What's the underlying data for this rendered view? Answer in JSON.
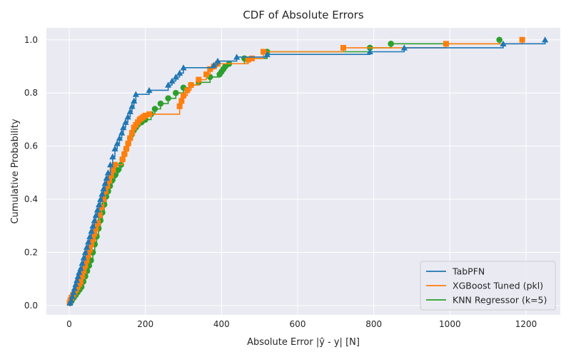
{
  "chart_data": {
    "type": "line",
    "title": "CDF of Absolute Errors",
    "xlabel": "Absolute Error |ŷ - y| [N]",
    "ylabel": "Cumulative Probability",
    "xlim": [
      -60,
      1290
    ],
    "ylim": [
      -0.035,
      1.045
    ],
    "xticks": [
      0,
      200,
      400,
      600,
      800,
      1000,
      1200
    ],
    "yticks": [
      0.0,
      0.2,
      0.4,
      0.6,
      0.8,
      1.0
    ],
    "grid": true,
    "legend_position": "lower-right",
    "series": [
      {
        "name": "TabPFN",
        "color": "#1f77b4",
        "marker": "triangle",
        "x": [
          2,
          5,
          8,
          11,
          14,
          17,
          20,
          23,
          26,
          30,
          34,
          38,
          42,
          46,
          50,
          54,
          58,
          62,
          66,
          70,
          74,
          78,
          82,
          86,
          90,
          94,
          98,
          102,
          108,
          114,
          120,
          126,
          132,
          138,
          142,
          148,
          154,
          160,
          165,
          170,
          175,
          210,
          260,
          270,
          280,
          290,
          300,
          380,
          390,
          440,
          520,
          790,
          880,
          1140,
          1250
        ],
        "y": [
          0.01,
          0.02,
          0.035,
          0.05,
          0.065,
          0.08,
          0.095,
          0.11,
          0.125,
          0.14,
          0.16,
          0.18,
          0.2,
          0.22,
          0.24,
          0.26,
          0.28,
          0.3,
          0.32,
          0.34,
          0.36,
          0.38,
          0.4,
          0.42,
          0.44,
          0.46,
          0.48,
          0.5,
          0.53,
          0.56,
          0.59,
          0.61,
          0.63,
          0.65,
          0.67,
          0.69,
          0.71,
          0.73,
          0.75,
          0.77,
          0.795,
          0.81,
          0.83,
          0.845,
          0.86,
          0.875,
          0.895,
          0.905,
          0.92,
          0.935,
          0.945,
          0.955,
          0.97,
          0.985,
          1.0
        ]
      },
      {
        "name": "XGBoost Tuned (pkl)",
        "color": "#ff7f0e",
        "marker": "square",
        "x": [
          1,
          3,
          6,
          10,
          14,
          18,
          22,
          26,
          30,
          34,
          38,
          42,
          46,
          50,
          54,
          58,
          62,
          66,
          70,
          75,
          80,
          85,
          90,
          95,
          100,
          105,
          110,
          115,
          120,
          140,
          145,
          150,
          155,
          160,
          165,
          170,
          175,
          180,
          185,
          190,
          195,
          200,
          210,
          290,
          295,
          300,
          310,
          320,
          340,
          360,
          370,
          380,
          390,
          470,
          480,
          510,
          720,
          990,
          1190
        ],
        "y": [
          0.01,
          0.02,
          0.03,
          0.04,
          0.05,
          0.06,
          0.07,
          0.08,
          0.09,
          0.11,
          0.13,
          0.15,
          0.17,
          0.19,
          0.21,
          0.23,
          0.25,
          0.27,
          0.29,
          0.31,
          0.34,
          0.37,
          0.4,
          0.43,
          0.45,
          0.47,
          0.49,
          0.51,
          0.53,
          0.55,
          0.57,
          0.59,
          0.61,
          0.63,
          0.65,
          0.67,
          0.68,
          0.69,
          0.7,
          0.705,
          0.71,
          0.715,
          0.72,
          0.75,
          0.77,
          0.79,
          0.81,
          0.83,
          0.85,
          0.87,
          0.89,
          0.9,
          0.91,
          0.925,
          0.93,
          0.955,
          0.97,
          0.985,
          1.0
        ]
      },
      {
        "name": "KNN Regressor (k=5)",
        "color": "#2ca02c",
        "marker": "circle",
        "x": [
          3,
          7,
          12,
          17,
          22,
          27,
          32,
          37,
          42,
          47,
          52,
          57,
          62,
          67,
          72,
          77,
          82,
          87,
          92,
          97,
          102,
          107,
          112,
          120,
          128,
          136,
          140,
          145,
          150,
          155,
          160,
          165,
          170,
          175,
          180,
          190,
          200,
          215,
          225,
          240,
          260,
          280,
          300,
          320,
          340,
          370,
          395,
          400,
          405,
          410,
          420,
          460,
          520,
          790,
          845,
          1130
        ],
        "y": [
          0.01,
          0.02,
          0.03,
          0.04,
          0.05,
          0.06,
          0.07,
          0.09,
          0.11,
          0.13,
          0.15,
          0.17,
          0.2,
          0.23,
          0.26,
          0.29,
          0.32,
          0.35,
          0.38,
          0.41,
          0.43,
          0.45,
          0.47,
          0.49,
          0.51,
          0.53,
          0.55,
          0.57,
          0.59,
          0.61,
          0.63,
          0.645,
          0.66,
          0.67,
          0.68,
          0.69,
          0.7,
          0.72,
          0.74,
          0.76,
          0.78,
          0.8,
          0.82,
          0.83,
          0.84,
          0.86,
          0.87,
          0.88,
          0.89,
          0.9,
          0.91,
          0.93,
          0.955,
          0.97,
          0.985,
          1.0
        ]
      }
    ]
  }
}
